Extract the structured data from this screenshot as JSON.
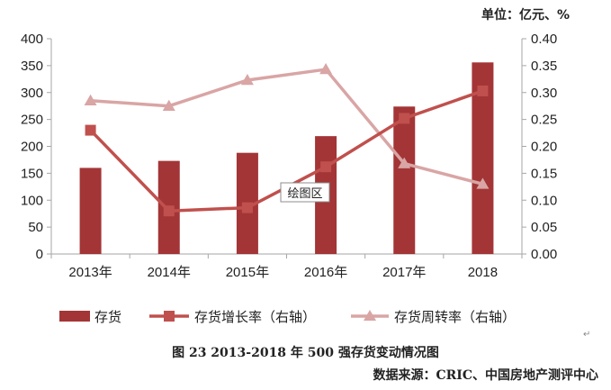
{
  "unit_label": "单位：亿元、%",
  "caption": "图 23 2013-2018 年 500 强存货变动情况图",
  "source": "数据来源：CRIC、中国房地产测评中心",
  "plot_area_label": "绘图区",
  "colors": {
    "bar": "#a33536",
    "growth": "#c0504d",
    "turnover": "#d9a5a5",
    "axis": "#a6a6a6"
  },
  "chart_data": {
    "type": "bar+line",
    "categories": [
      "2013年",
      "2014年",
      "2015年",
      "2016年",
      "2017年",
      "2018"
    ],
    "y_left": {
      "min": 0,
      "max": 400,
      "step": 50
    },
    "y_right": {
      "min": 0,
      "max": 0.4,
      "step": 0.05
    },
    "series": [
      {
        "name": "存货",
        "type": "bar",
        "axis": "left",
        "values": [
          160,
          173,
          188,
          219,
          274,
          356
        ]
      },
      {
        "name": "存货增长率（右轴）",
        "type": "line",
        "marker": "square",
        "axis": "right",
        "values": [
          0.23,
          0.08,
          0.086,
          0.162,
          0.252,
          0.303
        ]
      },
      {
        "name": "存货周转率（右轴）",
        "type": "line",
        "marker": "triangle",
        "axis": "right",
        "values": [
          0.285,
          0.275,
          0.323,
          0.343,
          0.168,
          0.13
        ]
      }
    ]
  }
}
